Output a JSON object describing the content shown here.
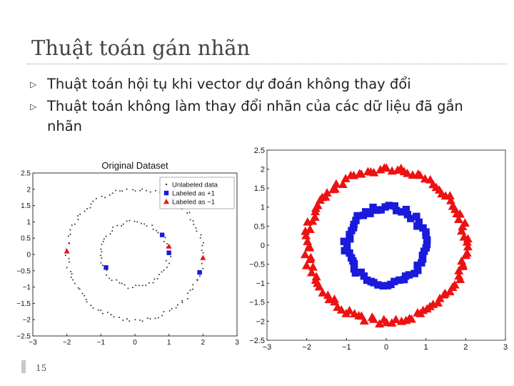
{
  "slide": {
    "title": "Thuật toán gán nhãn",
    "bullets": [
      "Thuật toán hội tụ khi vector dự đoán không thay đổi",
      "Thuật toán không làm thay đổi nhãn của các dữ liệu đã gắn nhãn"
    ],
    "page_number": "15",
    "bullet_icon": "triangle-right-icon"
  },
  "chart_data": [
    {
      "type": "scatter",
      "title": "Original Dataset",
      "xlim": [
        -3,
        3
      ],
      "ylim": [
        -2.5,
        2.5
      ],
      "xticks": [
        "−3",
        "−2",
        "−1",
        "0",
        "1",
        "2",
        "3"
      ],
      "yticks": [
        "2.5",
        "2",
        "1.5",
        "1",
        "0.5",
        "0",
        "−0.5",
        "−1",
        "−1.5",
        "−2",
        "−2.5"
      ],
      "legend": {
        "position": "top-right",
        "entries": [
          "Unlabeled data",
          "Labeled as +1",
          "Labeled as −1"
        ]
      },
      "grid": false,
      "series": [
        {
          "name": "Unlabeled data",
          "marker": "dot",
          "color": "#333333",
          "generator": "two-rings",
          "rings": [
            {
              "radius": 2,
              "count": 110
            },
            {
              "radius": 1,
              "count": 60
            }
          ]
        },
        {
          "name": "Labeled as +1",
          "marker": "square",
          "color": "#1a1adc",
          "points": [
            [
              -0.85,
              -0.4
            ],
            [
              0.8,
              0.6
            ],
            [
              1.0,
              0.05
            ],
            [
              1.9,
              -0.55
            ]
          ]
        },
        {
          "name": "Labeled as −1",
          "marker": "triangle",
          "color": "#ee1111",
          "points": [
            [
              -2.0,
              0.1
            ],
            [
              1.0,
              0.25
            ],
            [
              2.0,
              -0.1
            ]
          ]
        }
      ]
    },
    {
      "type": "scatter",
      "title": "",
      "xlim": [
        -3,
        3
      ],
      "ylim": [
        -2.5,
        2.5
      ],
      "xticks": [
        "−3",
        "−2",
        "−1",
        "0",
        "1",
        "2",
        "3"
      ],
      "yticks": [
        "2.5",
        "2",
        "1.5",
        "1",
        "0.5",
        "0",
        "−0.5",
        "−1",
        "−1.5",
        "−2",
        "−2.5"
      ],
      "grid": false,
      "series": [
        {
          "marker": "triangle",
          "color": "#ee1111",
          "generator": "ring",
          "radius": 2.0,
          "count": 115
        },
        {
          "marker": "square",
          "color": "#1a1adc",
          "generator": "ring",
          "radius": 1.0,
          "count": 60
        }
      ]
    }
  ]
}
